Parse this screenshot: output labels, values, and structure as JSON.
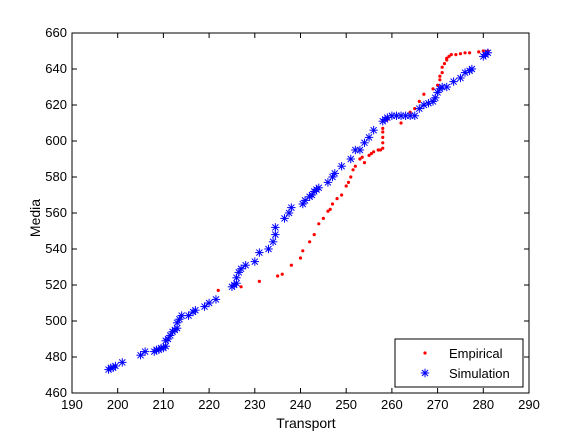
{
  "chart_data": {
    "type": "scatter",
    "title": "",
    "xlabel": "Transport",
    "ylabel": "Media",
    "xlim": [
      190,
      290
    ],
    "ylim": [
      460,
      660
    ],
    "xticks": [
      190,
      200,
      210,
      220,
      230,
      240,
      250,
      260,
      270,
      280,
      290
    ],
    "yticks": [
      460,
      480,
      500,
      520,
      540,
      560,
      580,
      600,
      620,
      640,
      660
    ],
    "grid": false,
    "legend_position": "bottom-right",
    "series": [
      {
        "name": "Empirical",
        "marker": "dot",
        "color": "#ff0000",
        "points": [
          [
            222,
            517
          ],
          [
            227,
            519
          ],
          [
            231,
            522
          ],
          [
            235,
            525
          ],
          [
            236,
            526
          ],
          [
            238,
            531
          ],
          [
            240,
            535
          ],
          [
            240.5,
            539
          ],
          [
            242,
            544
          ],
          [
            243,
            548
          ],
          [
            244,
            554
          ],
          [
            245,
            557
          ],
          [
            246,
            561
          ],
          [
            246.5,
            562
          ],
          [
            247,
            565
          ],
          [
            248,
            568
          ],
          [
            249,
            570
          ],
          [
            250,
            575
          ],
          [
            250.5,
            577
          ],
          [
            251,
            580
          ],
          [
            251.5,
            584
          ],
          [
            252,
            586
          ],
          [
            253,
            590
          ],
          [
            253.5,
            591
          ],
          [
            254,
            588
          ],
          [
            255,
            592
          ],
          [
            255.5,
            593
          ],
          [
            256,
            594
          ],
          [
            257,
            595
          ],
          [
            257.5,
            595
          ],
          [
            258,
            596
          ],
          [
            258,
            599
          ],
          [
            258,
            602
          ],
          [
            258,
            605
          ],
          [
            258,
            607
          ],
          [
            259,
            612
          ],
          [
            262,
            610
          ],
          [
            264,
            616
          ],
          [
            265,
            618
          ],
          [
            266,
            622
          ],
          [
            267,
            626
          ],
          [
            269,
            629
          ],
          [
            270,
            631
          ],
          [
            270.5,
            634
          ],
          [
            270.5,
            636
          ],
          [
            271,
            638
          ],
          [
            271,
            641
          ],
          [
            271.5,
            643
          ],
          [
            272,
            645
          ],
          [
            272,
            646
          ],
          [
            272.5,
            647
          ],
          [
            273,
            648
          ],
          [
            274,
            648
          ],
          [
            275,
            648.5
          ],
          [
            276,
            649
          ],
          [
            277,
            649
          ],
          [
            279,
            649.5
          ],
          [
            280,
            650
          ],
          [
            281,
            650
          ]
        ]
      },
      {
        "name": "Simulation",
        "marker": "star",
        "color": "#0000ff",
        "points": [
          [
            198,
            473
          ],
          [
            198.5,
            474
          ],
          [
            199,
            474
          ],
          [
            199.5,
            475
          ],
          [
            201,
            477
          ],
          [
            205,
            481
          ],
          [
            206,
            483
          ],
          [
            208,
            483
          ],
          [
            208.5,
            484
          ],
          [
            209,
            484
          ],
          [
            209.5,
            485
          ],
          [
            210,
            485
          ],
          [
            210.5,
            486
          ],
          [
            210.5,
            489
          ],
          [
            211,
            490
          ],
          [
            211.5,
            492
          ],
          [
            212,
            494
          ],
          [
            212.5,
            495
          ],
          [
            213,
            496
          ],
          [
            213,
            499
          ],
          [
            213.5,
            501
          ],
          [
            214,
            503
          ],
          [
            215.5,
            503
          ],
          [
            216.5,
            505
          ],
          [
            217,
            506
          ],
          [
            219,
            508
          ],
          [
            220,
            510
          ],
          [
            221.5,
            512
          ],
          [
            225,
            519
          ],
          [
            225.5,
            520
          ],
          [
            226,
            521
          ],
          [
            226,
            524
          ],
          [
            226.5,
            527
          ],
          [
            227,
            529
          ],
          [
            228,
            531
          ],
          [
            230,
            533
          ],
          [
            231,
            538
          ],
          [
            233,
            540
          ],
          [
            234,
            544
          ],
          [
            234.5,
            548
          ],
          [
            234.5,
            552
          ],
          [
            236.5,
            557
          ],
          [
            237.5,
            560
          ],
          [
            238,
            563
          ],
          [
            240.5,
            565
          ],
          [
            241,
            567
          ],
          [
            242,
            569
          ],
          [
            242.5,
            570
          ],
          [
            243,
            572
          ],
          [
            243.5,
            573
          ],
          [
            244,
            574
          ],
          [
            246,
            577
          ],
          [
            247,
            580
          ],
          [
            247.5,
            582
          ],
          [
            249,
            586
          ],
          [
            251,
            590
          ],
          [
            252,
            595
          ],
          [
            253,
            595
          ],
          [
            254,
            599
          ],
          [
            255,
            602
          ],
          [
            256,
            606
          ],
          [
            258,
            611
          ],
          [
            258.5,
            612
          ],
          [
            259,
            613
          ],
          [
            260,
            614
          ],
          [
            261,
            614
          ],
          [
            262,
            614
          ],
          [
            263,
            614
          ],
          [
            264,
            614
          ],
          [
            265,
            614
          ],
          [
            266,
            618
          ],
          [
            267,
            620
          ],
          [
            268,
            621
          ],
          [
            269,
            622
          ],
          [
            269.5,
            624
          ],
          [
            270,
            627
          ],
          [
            270.5,
            629
          ],
          [
            271,
            630
          ],
          [
            272,
            630
          ],
          [
            273.5,
            633
          ],
          [
            275,
            635
          ],
          [
            276,
            638
          ],
          [
            277,
            639
          ],
          [
            277.5,
            640
          ],
          [
            280,
            647
          ],
          [
            280.5,
            648
          ],
          [
            281,
            649
          ]
        ]
      }
    ]
  }
}
